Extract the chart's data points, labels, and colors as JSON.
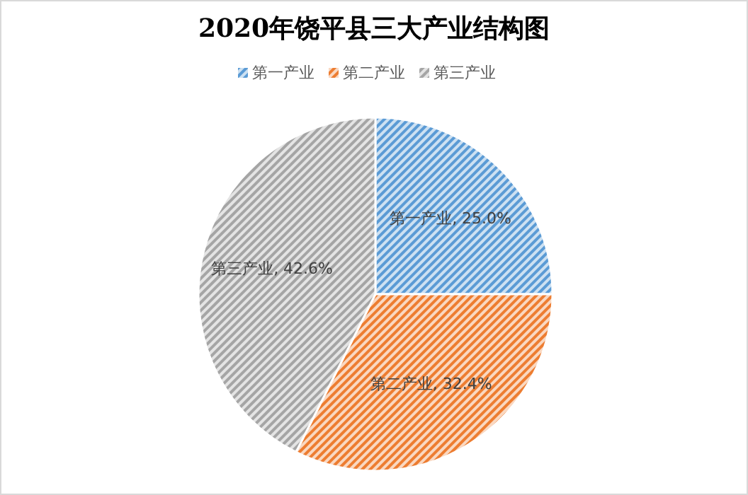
{
  "chart_data": {
    "type": "pie",
    "title": "2020年饶平县三大产业结构图",
    "categories": [
      "第一产业",
      "第二产业",
      "第三产业"
    ],
    "values": [
      25.0,
      32.4,
      42.6
    ],
    "colors": [
      "#5b9bd5",
      "#ed7d31",
      "#a5a5a5"
    ],
    "value_labels": [
      "第一产业, 25.0%",
      "第二产业, 32.4%",
      "第三产业, 42.6%"
    ],
    "legend": "top"
  }
}
